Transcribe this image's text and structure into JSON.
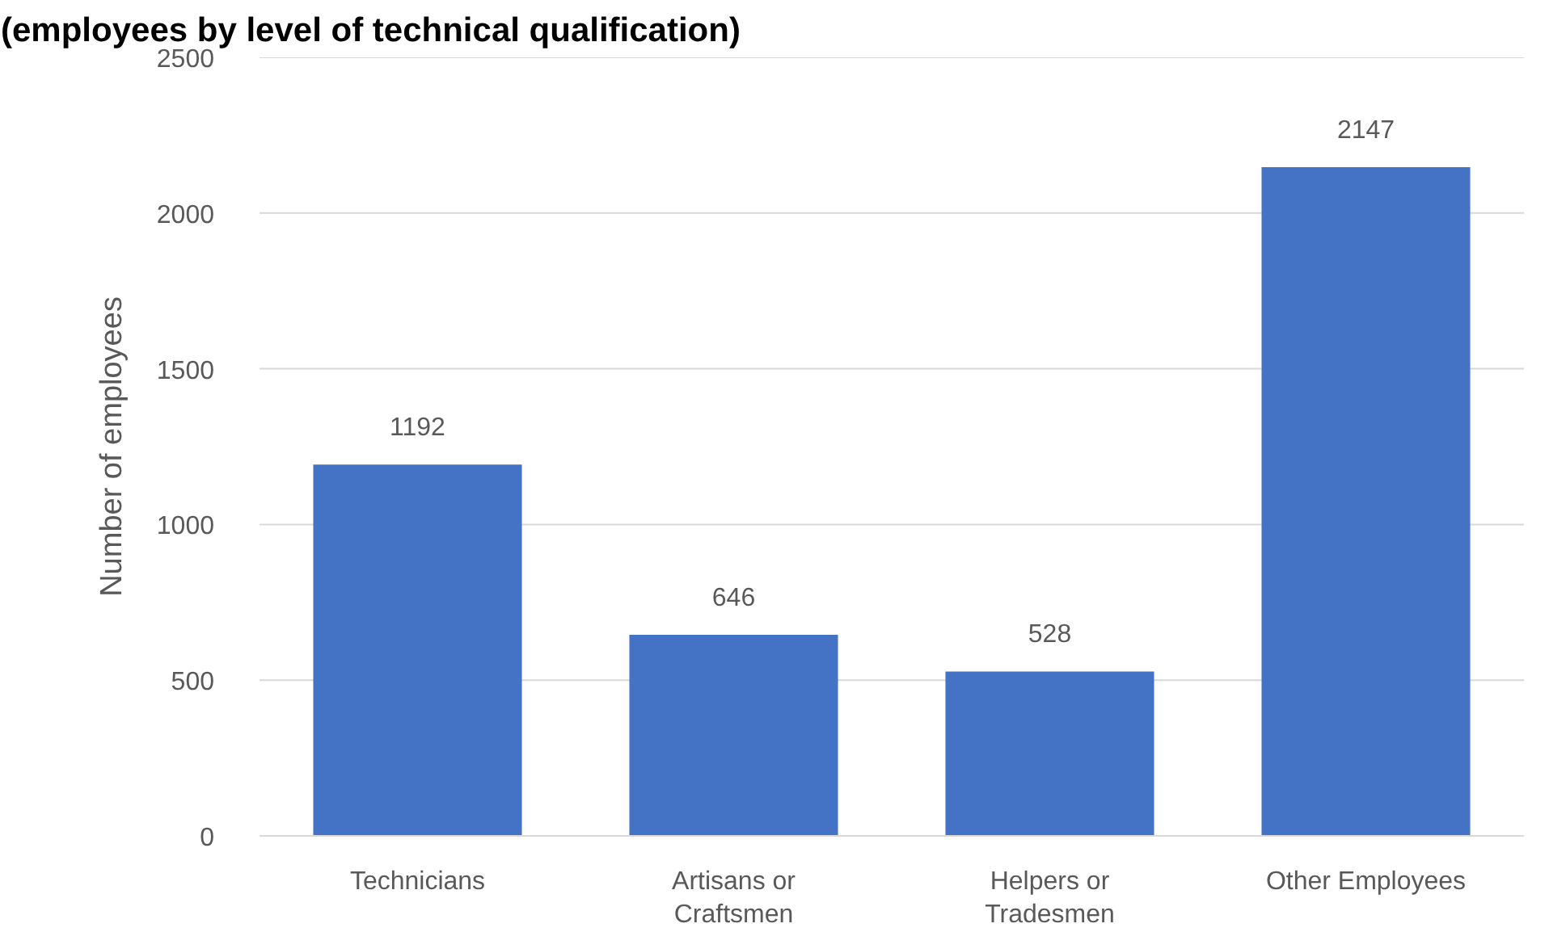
{
  "chart_data": {
    "type": "bar",
    "title": "(employees by level of technical qualification)",
    "ylabel": "Number of employees",
    "categories": [
      "Technicians",
      "Artisans or Craftsmen",
      "Helpers or Tradesmen",
      "Other Employees"
    ],
    "values": [
      1192,
      646,
      528,
      2147
    ],
    "color": "#4472c4",
    "ylim": [
      0,
      2500
    ],
    "yticks": [
      0,
      500,
      1000,
      1500,
      2000,
      2500
    ],
    "grid": "y",
    "data_labels": true
  }
}
